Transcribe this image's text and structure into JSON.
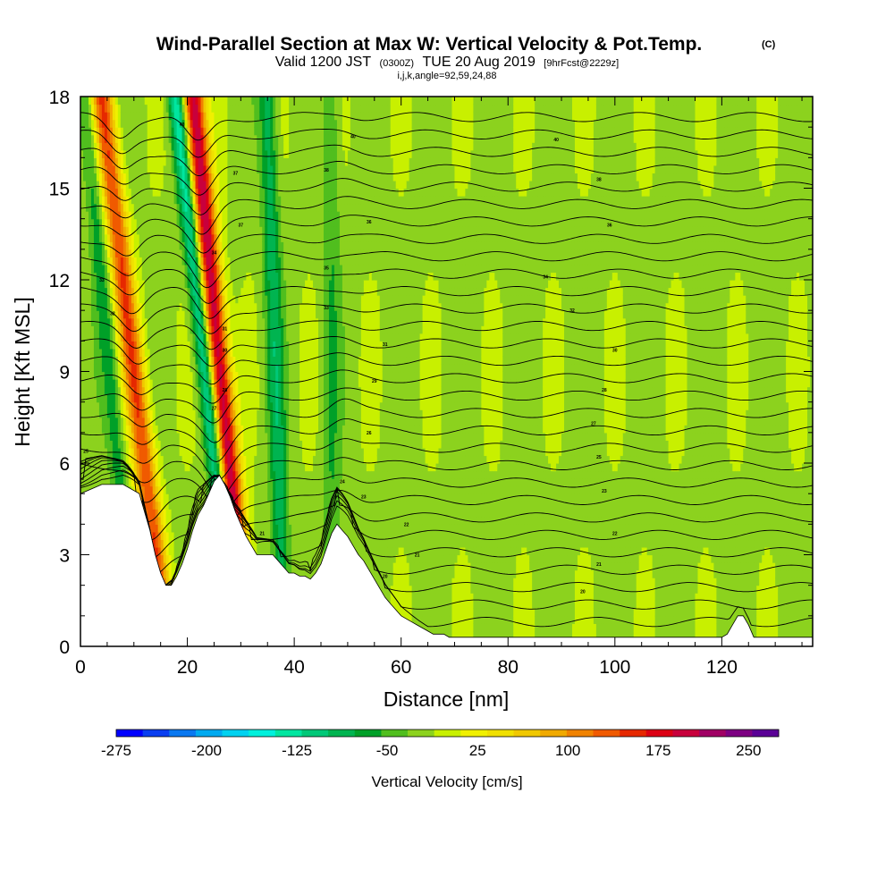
{
  "chart_data": {
    "type": "heatmap",
    "title": "Wind-Parallel Section at Max W: Vertical Velocity & Pot.Temp.",
    "title_units": "(C)",
    "subtitle": {
      "prefix": "Valid 1200 JST",
      "zulu": "(0300Z)",
      "date": "TUE 20 Aug 2019",
      "forecast": "[9hrFcst@2229z]"
    },
    "subtitle2": "i,j,k,angle=92,59,24,88",
    "xlabel": "Distance [nm]",
    "ylabel": "Height [Kft MSL]",
    "xlim": [
      0,
      137
    ],
    "ylim": [
      0,
      18
    ],
    "x_ticks": [
      0,
      20,
      40,
      60,
      80,
      100,
      120
    ],
    "y_ticks": [
      0,
      3,
      6,
      9,
      12,
      15,
      18
    ],
    "colorbar": {
      "title": "Vertical Velocity [cm/s]",
      "min": -275,
      "max": 275,
      "step": 25,
      "tick_values": [
        -275,
        -200,
        -125,
        -50,
        25,
        100,
        175,
        250
      ],
      "colors": [
        "#0000ff",
        "#0a3ef0",
        "#0a78f0",
        "#00aaf0",
        "#00d2f0",
        "#00f0dc",
        "#00e6a0",
        "#00c878",
        "#00b450",
        "#00a028",
        "#50be1e",
        "#8cd21e",
        "#c8f000",
        "#f0f000",
        "#f0e000",
        "#f0c800",
        "#f0aa00",
        "#f08200",
        "#f05a00",
        "#e62800",
        "#dc0014",
        "#c8003c",
        "#a00064",
        "#7d0082",
        "#5a0096"
      ]
    },
    "velocity_features": [
      {
        "kind": "updraft",
        "bottom_x": 16,
        "top_x": 4,
        "peak": 180
      },
      {
        "kind": "updraft",
        "bottom_x": 31,
        "top_x": 21,
        "peak": 260
      },
      {
        "kind": "downdraft",
        "bottom_x": 29,
        "top_x": 18,
        "peak": -150
      },
      {
        "kind": "downdraft",
        "bottom_x": 38,
        "top_x": 35,
        "peak": -80
      },
      {
        "kind": "downdraft",
        "bottom_x": 10,
        "top_x": 1,
        "peak": -60
      },
      {
        "kind": "downdraft",
        "bottom_x": 47,
        "top_x": 47,
        "peak": -40
      }
    ],
    "terrain": {
      "x": [
        0,
        4,
        8,
        11,
        12,
        13,
        14,
        15,
        16,
        17,
        18,
        19,
        20,
        21,
        22,
        23,
        24,
        25,
        26,
        27,
        28,
        29,
        30,
        31,
        32,
        33,
        34,
        35,
        36,
        37,
        38,
        39,
        40,
        41,
        42,
        43,
        44,
        45,
        46,
        47,
        48,
        49,
        50,
        51,
        52,
        53,
        54,
        55,
        56,
        57,
        58,
        59,
        60,
        61,
        62,
        63,
        64,
        65,
        66,
        67,
        68,
        69,
        70,
        72,
        76,
        80,
        85,
        90,
        95,
        100,
        105,
        110,
        115,
        118,
        119,
        120,
        121,
        122,
        123,
        124,
        125,
        126,
        127,
        128,
        130,
        137
      ],
      "y": [
        5.0,
        5.3,
        5.3,
        5.0,
        4.4,
        3.8,
        3.0,
        2.4,
        2.0,
        2.0,
        2.3,
        2.7,
        3.2,
        3.8,
        4.3,
        4.6,
        5.0,
        5.4,
        5.6,
        5.3,
        4.9,
        4.4,
        4.0,
        3.6,
        3.3,
        3.0,
        3.0,
        3.0,
        3.0,
        2.8,
        2.6,
        2.4,
        2.4,
        2.3,
        2.3,
        2.2,
        2.4,
        2.7,
        3.2,
        3.7,
        4.0,
        3.8,
        3.6,
        3.3,
        3.0,
        2.8,
        2.5,
        2.2,
        1.9,
        1.6,
        1.4,
        1.2,
        1.0,
        0.9,
        0.8,
        0.7,
        0.6,
        0.5,
        0.4,
        0.4,
        0.4,
        0.3,
        0.3,
        0.3,
        0.3,
        0.3,
        0.3,
        0.3,
        0.3,
        0.3,
        0.3,
        0.3,
        0.3,
        0.3,
        0.3,
        0.3,
        0.4,
        0.7,
        1.0,
        1.0,
        0.7,
        0.3,
        0.3,
        0.3,
        0.3,
        0.3
      ]
    },
    "isentropes": {
      "count": 30,
      "base_y": 0.8,
      "spacing": 0.57
    },
    "contour_labels": [
      {
        "text": "40",
        "x": 19,
        "y": 17.1
      },
      {
        "text": "40",
        "x": 51,
        "y": 16.7
      },
      {
        "text": "40",
        "x": 89,
        "y": 16.6
      },
      {
        "text": "37",
        "x": 29,
        "y": 15.5
      },
      {
        "text": "38",
        "x": 46,
        "y": 15.6
      },
      {
        "text": "38",
        "x": 97,
        "y": 15.3
      },
      {
        "text": "37",
        "x": 30,
        "y": 13.8
      },
      {
        "text": "36",
        "x": 54,
        "y": 13.9
      },
      {
        "text": "36",
        "x": 99,
        "y": 13.8
      },
      {
        "text": "34",
        "x": 25,
        "y": 12.9
      },
      {
        "text": "35",
        "x": 46,
        "y": 12.4
      },
      {
        "text": "33",
        "x": 4,
        "y": 12.0
      },
      {
        "text": "34",
        "x": 87,
        "y": 12.1
      },
      {
        "text": "33",
        "x": 46,
        "y": 11.1
      },
      {
        "text": "32",
        "x": 92,
        "y": 11.0
      },
      {
        "text": "32",
        "x": 6,
        "y": 10.9
      },
      {
        "text": "31",
        "x": 27,
        "y": 10.4
      },
      {
        "text": "31",
        "x": 57,
        "y": 9.9
      },
      {
        "text": "30",
        "x": 27,
        "y": 9.7
      },
      {
        "text": "30",
        "x": 100,
        "y": 9.7
      },
      {
        "text": "29",
        "x": 55,
        "y": 8.7
      },
      {
        "text": "28",
        "x": 27,
        "y": 8.4
      },
      {
        "text": "28",
        "x": 98,
        "y": 8.4
      },
      {
        "text": "27",
        "x": 25,
        "y": 7.8
      },
      {
        "text": "27",
        "x": 96,
        "y": 7.3
      },
      {
        "text": "26",
        "x": 54,
        "y": 7.0
      },
      {
        "text": "25",
        "x": 1,
        "y": 6.4
      },
      {
        "text": "25",
        "x": 97,
        "y": 6.2
      },
      {
        "text": "24",
        "x": 49,
        "y": 5.4
      },
      {
        "text": "23",
        "x": 53,
        "y": 4.9
      },
      {
        "text": "23",
        "x": 98,
        "y": 5.1
      },
      {
        "text": "22",
        "x": 61,
        "y": 4.0
      },
      {
        "text": "22",
        "x": 100,
        "y": 3.7
      },
      {
        "text": "21",
        "x": 34,
        "y": 3.7
      },
      {
        "text": "21",
        "x": 63,
        "y": 3.0
      },
      {
        "text": "21",
        "x": 97,
        "y": 2.7
      },
      {
        "text": "20",
        "x": 57,
        "y": 2.3
      },
      {
        "text": "20",
        "x": 94,
        "y": 1.8
      }
    ]
  }
}
